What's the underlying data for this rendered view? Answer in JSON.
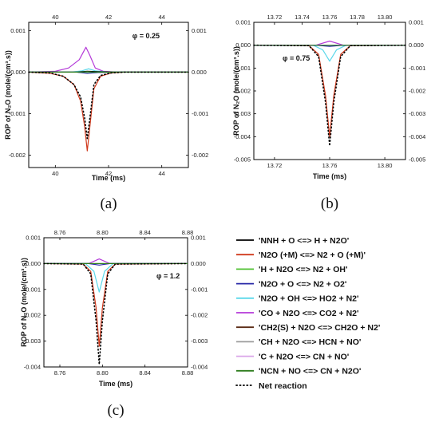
{
  "legend": [
    {
      "label": "'NNH + O <=> H + N2O'",
      "color": "#000000"
    },
    {
      "label": "'N2O (+M) <=> N2 + O (+M)'",
      "color": "#d0391c"
    },
    {
      "label": "'H + N2O <=> N2 + OH'",
      "color": "#52c234"
    },
    {
      "label": "'N2O + O <=> N2 + O2'",
      "color": "#2a2aa8"
    },
    {
      "label": "'N2O + OH <=> HO2 + N2'",
      "color": "#5cd8ea"
    },
    {
      "label": "'CO + N2O <=> CO2 + N2'",
      "color": "#b43ad8"
    },
    {
      "label": "'CH2(S) + N2O <=> CH2O + N2'",
      "color": "#5a2a14"
    },
    {
      "label": "'CH + N2O <=> HCN + NO'",
      "color": "#9a9a9a"
    },
    {
      "label": "'C + N2O <=> CN + NO'",
      "color": "#d9a4e8"
    },
    {
      "label": "'NCN + NO <=> CN + N2O'",
      "color": "#2e7d1e"
    },
    {
      "label": "Net reaction",
      "color": "#000000",
      "dotted": true
    }
  ],
  "chart_data": [
    {
      "panel": "(a)",
      "type": "line",
      "annotation": "φ = 0.25",
      "xlabel": "Time (ms)",
      "ylabel": "ROP of N₂O (mole/(cm³.s))",
      "xlim": [
        39.0,
        45.0
      ],
      "ylim": [
        -0.0023,
        0.0012
      ],
      "x_ticks": [
        "40",
        "42",
        "44"
      ],
      "y_ticks": [
        "0.001",
        "0.000",
        "-0.001",
        "-0.002"
      ],
      "y_ticks_right": [
        "0.001",
        "0.000",
        "-0.001",
        "-0.002"
      ],
      "series": [
        {
          "name": "'N2O (+M) <=> N2 + O (+M)'",
          "x": [
            39.0,
            39.8,
            40.3,
            40.7,
            40.95,
            41.1,
            41.2,
            41.3,
            41.45,
            41.7,
            42.1,
            42.6,
            45.0
          ],
          "y": [
            0,
            -3e-05,
            -0.0001,
            -0.0003,
            -0.0007,
            -0.0013,
            -0.0019,
            -0.0013,
            -0.0004,
            -0.0001,
            -2e-05,
            0,
            0
          ]
        },
        {
          "name": "'CO + N2O <=> CO2 + N2'",
          "x": [
            39.0,
            40.0,
            40.5,
            40.9,
            41.15,
            41.3,
            41.5,
            41.8,
            42.3,
            45.0
          ],
          "y": [
            0,
            2e-05,
            0.0001,
            0.0003,
            0.0006,
            0.0004,
            0.0001,
            2e-05,
            0,
            0
          ]
        },
        {
          "name": "'N2O + OH <=> HO2 + N2'",
          "x": [
            39.0,
            40.6,
            41.0,
            41.25,
            41.5,
            42.0,
            45.0
          ],
          "y": [
            0,
            0,
            3e-05,
            8e-05,
            3e-05,
            0,
            0
          ]
        },
        {
          "name": "'NNH + O <=> H + N2O'",
          "x": [
            39.0,
            40.8,
            41.2,
            41.6,
            42.3,
            45.0
          ],
          "y": [
            0,
            0,
            2e-05,
            1e-05,
            0,
            0
          ]
        },
        {
          "name": "'H + N2O <=> N2 + OH'",
          "x": [
            39.0,
            40.8,
            41.2,
            41.6,
            42.3,
            45.0
          ],
          "y": [
            0,
            0,
            -2e-05,
            -1e-05,
            0,
            0
          ]
        },
        {
          "name": "'N2O + O <=> N2 + O2'",
          "x": [
            39.0,
            40.8,
            41.2,
            41.6,
            42.3,
            45.0
          ],
          "y": [
            0,
            0,
            -3e-05,
            -1e-05,
            0,
            0
          ]
        },
        {
          "name": "'NCN + NO <=> CN + N2O'",
          "x": [
            39.0,
            41.0,
            41.2,
            41.4,
            45.0
          ],
          "y": [
            0,
            0,
            1e-05,
            0,
            0
          ]
        },
        {
          "name": "Net reaction",
          "x": [
            39.0,
            39.8,
            40.3,
            40.7,
            40.95,
            41.1,
            41.2,
            41.3,
            41.45,
            41.7,
            42.1,
            42.6,
            45.0
          ],
          "y": [
            0,
            -2e-05,
            -0.0001,
            -0.0003,
            -0.0006,
            -0.0011,
            -0.0016,
            -0.0011,
            -0.0003,
            -8e-05,
            -2e-05,
            0,
            0
          ]
        }
      ]
    },
    {
      "panel": "(b)",
      "type": "line",
      "annotation": "φ = 0.75",
      "xlabel": "Time (ms)",
      "ylabel": "ROP of N₂O (mole/(cm³.s))",
      "xlim": [
        13.705,
        13.815
      ],
      "ylim": [
        -0.005,
        0.001
      ],
      "x_ticks_top": [
        "13.72",
        "13.74",
        "13.76",
        "13.78",
        "13.80"
      ],
      "x_ticks": [
        "13.72",
        "13.76",
        "13.80"
      ],
      "y_ticks": [
        "0.001",
        "0.000",
        "-0.001",
        "-0.002",
        "-0.003",
        "-0.004",
        "-0.005"
      ],
      "y_ticks_right": [
        "0.001",
        "0.000",
        "-0.001",
        "-0.002",
        "-0.003",
        "-0.004",
        "-0.005"
      ],
      "series": [
        {
          "name": "'N2O (+M) <=> N2 + O (+M)'",
          "x": [
            13.705,
            13.745,
            13.752,
            13.757,
            13.76,
            13.763,
            13.768,
            13.775,
            13.815
          ],
          "y": [
            0,
            -2e-05,
            -0.0004,
            -0.0022,
            -0.004,
            -0.0022,
            -0.0004,
            -2e-05,
            0
          ]
        },
        {
          "name": "'N2O + OH <=> HO2 + N2'",
          "x": [
            13.705,
            13.748,
            13.755,
            13.76,
            13.765,
            13.772,
            13.815
          ],
          "y": [
            0,
            0,
            -0.0002,
            -0.0007,
            -0.0002,
            0,
            0
          ]
        },
        {
          "name": "'CO + N2O <=> CO2 + N2'",
          "x": [
            13.705,
            13.75,
            13.76,
            13.77,
            13.815
          ],
          "y": [
            0,
            0,
            0.00018,
            0,
            0
          ]
        },
        {
          "name": "'N2O + O <=> N2 + O2'",
          "x": [
            13.705,
            13.75,
            13.76,
            13.77,
            13.815
          ],
          "y": [
            0,
            0,
            -5e-05,
            0,
            0
          ]
        },
        {
          "name": "'NCN + NO <=> CN + N2O'",
          "x": [
            13.705,
            13.815
          ],
          "y": [
            0,
            0
          ]
        },
        {
          "name": "Net reaction",
          "x": [
            13.705,
            13.745,
            13.752,
            13.757,
            13.76,
            13.763,
            13.768,
            13.775,
            13.815
          ],
          "y": [
            0,
            -2e-05,
            -0.0005,
            -0.0025,
            -0.0044,
            -0.0025,
            -0.0005,
            -2e-05,
            0
          ]
        }
      ]
    },
    {
      "panel": "(c)",
      "type": "line",
      "annotation": "φ = 1.2",
      "xlabel": "Time (ms)",
      "ylabel": "ROP of N₂O (mole/(cm³.s))",
      "xlim": [
        8.745,
        8.88
      ],
      "ylim": [
        -0.004,
        0.001
      ],
      "x_ticks_top": [
        "8.76",
        "8.80",
        "8.84",
        "8.88"
      ],
      "x_ticks": [
        "8.76",
        "8.80",
        "8.84",
        "8.88"
      ],
      "y_ticks": [
        "0.001",
        "0.000",
        "-0.001",
        "-0.002",
        "-0.003",
        "-0.004"
      ],
      "y_ticks_right": [
        "0.001",
        "0.000",
        "-0.001",
        "-0.002",
        "-0.003",
        "-0.004"
      ],
      "series": [
        {
          "name": "'N2O (+M) <=> N2 + O (+M)'",
          "x": [
            8.745,
            8.782,
            8.789,
            8.794,
            8.797,
            8.8,
            8.805,
            8.812,
            8.88
          ],
          "y": [
            0,
            -2e-05,
            -0.0003,
            -0.0017,
            -0.0032,
            -0.0017,
            -0.0003,
            -2e-05,
            0
          ]
        },
        {
          "name": "'N2O + OH <=> HO2 + N2'",
          "x": [
            8.745,
            8.784,
            8.792,
            8.797,
            8.802,
            8.81,
            8.88
          ],
          "y": [
            0,
            0,
            -0.0003,
            -0.0011,
            -0.0003,
            0,
            0
          ]
        },
        {
          "name": "'CO + N2O <=> CO2 + N2'",
          "x": [
            8.745,
            8.787,
            8.797,
            8.807,
            8.88
          ],
          "y": [
            0,
            0,
            0.00018,
            0,
            0
          ]
        },
        {
          "name": "'N2O + O <=> N2 + O2'",
          "x": [
            8.745,
            8.787,
            8.797,
            8.807,
            8.88
          ],
          "y": [
            0,
            0,
            -6e-05,
            0,
            0
          ]
        },
        {
          "name": "'NCN + NO <=> CN + N2O'",
          "x": [
            8.745,
            8.88
          ],
          "y": [
            0,
            0
          ]
        },
        {
          "name": "Net reaction",
          "x": [
            8.745,
            8.782,
            8.789,
            8.794,
            8.797,
            8.8,
            8.805,
            8.812,
            8.88
          ],
          "y": [
            0,
            -2e-05,
            -0.0004,
            -0.0022,
            -0.0039,
            -0.0022,
            -0.0004,
            -2e-05,
            0
          ]
        }
      ]
    }
  ]
}
